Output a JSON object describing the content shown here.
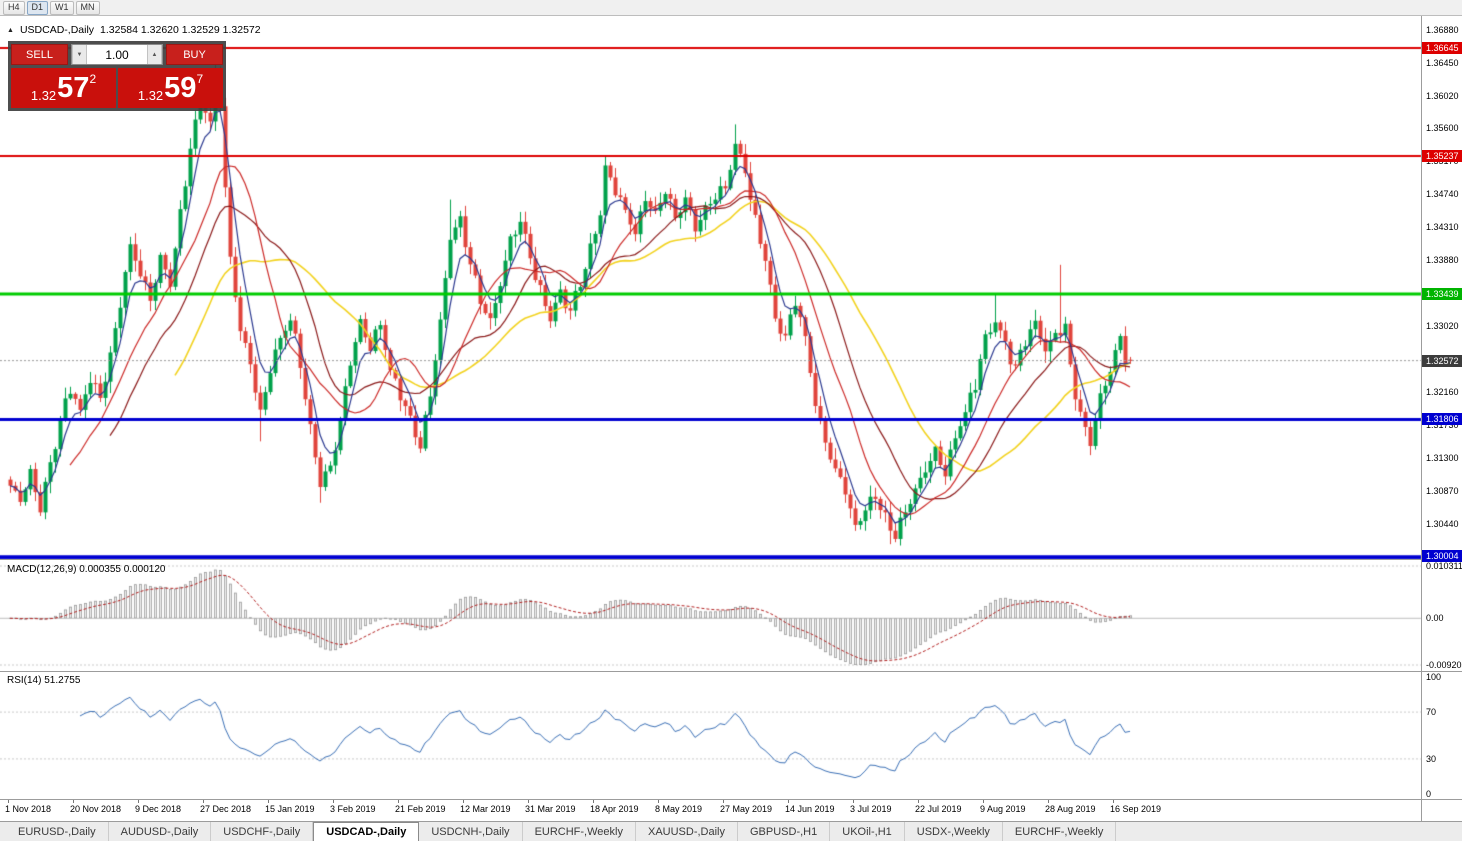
{
  "toolbar": {
    "buttons": [
      {
        "label": "H4",
        "active": false
      },
      {
        "label": "D1",
        "active": true
      },
      {
        "label": "W1",
        "active": false
      },
      {
        "label": "MN",
        "active": false
      }
    ]
  },
  "chart_header": {
    "collapse_icon": "▲",
    "symbol": "USDCAD-,Daily",
    "ohlc_text": "1.32584 1.32620 1.32529 1.32572"
  },
  "trade_panel": {
    "sell_label": "SELL",
    "buy_label": "BUY",
    "volume": "1.00",
    "volume_down_icon": "▼",
    "volume_up_icon": "▲",
    "sell_price": {
      "prefix": "1.32",
      "big": "57",
      "sup": "2"
    },
    "buy_price": {
      "prefix": "1.32",
      "big": "59",
      "sup": "7"
    }
  },
  "price_axis": {
    "ticks": [
      "1.36880",
      "1.36450",
      "1.36020",
      "1.35600",
      "1.35170",
      "1.34740",
      "1.34310",
      "1.33880",
      "1.33450",
      "1.33020",
      "1.32590",
      "1.32160",
      "1.31730",
      "1.31300",
      "1.30870",
      "1.30440"
    ],
    "badges": [
      {
        "value": "1.36645",
        "bg": "#dd0000"
      },
      {
        "value": "1.35237",
        "bg": "#dd0000"
      },
      {
        "value": "1.33439",
        "bg": "#00b400"
      },
      {
        "value": "1.32572",
        "bg": "#3c3c3c"
      },
      {
        "value": "1.31806",
        "bg": "#0000d0"
      },
      {
        "value": "1.30004",
        "bg": "#0000d0"
      }
    ]
  },
  "macd_panel": {
    "label": "MACD(12,26,9) 0.000355 0.000120",
    "axis_labels": [
      {
        "text": "0.010311",
        "value": 0.010311
      },
      {
        "text": "0.00",
        "value": 0
      },
      {
        "text": "-0.009203",
        "value": -0.009203
      }
    ]
  },
  "rsi_panel": {
    "label": "RSI(14) 51.2755",
    "axis_labels": [
      {
        "text": "100",
        "value": 100
      },
      {
        "text": "70",
        "value": 70
      },
      {
        "text": "30",
        "value": 30
      },
      {
        "text": "0",
        "value": 0
      }
    ]
  },
  "time_axis": {
    "labels": [
      "1 Nov 2018",
      "20 Nov 2018",
      "9 Dec 2018",
      "27 Dec 2018",
      "15 Jan 2019",
      "3 Feb 2019",
      "21 Feb 2019",
      "12 Mar 2019",
      "31 Mar 2019",
      "18 Apr 2019",
      "8 May 2019",
      "27 May 2019",
      "14 Jun 2019",
      "3 Jul 2019",
      "22 Jul 2019",
      "9 Aug 2019",
      "28 Aug 2019",
      "16 Sep 2019"
    ]
  },
  "tab_bar": {
    "tabs": [
      {
        "label": "EURUSD-,Daily",
        "active": false
      },
      {
        "label": "AUDUSD-,Daily",
        "active": false
      },
      {
        "label": "USDCHF-,Daily",
        "active": false
      },
      {
        "label": "USDCAD-,Daily",
        "active": true
      },
      {
        "label": "USDCNH-,Daily",
        "active": false
      },
      {
        "label": "EURCHF-,Weekly",
        "active": false
      },
      {
        "label": "XAUUSD-,Daily",
        "active": false
      },
      {
        "label": "GBPUSD-,H1",
        "active": false
      },
      {
        "label": "UKOil-,H1",
        "active": false
      },
      {
        "label": "USDX-,Weekly",
        "active": false
      },
      {
        "label": "EURCHF-,Weekly",
        "active": false
      }
    ]
  },
  "colors": {
    "up_candle": "#00a14b",
    "down_candle": "#e0443c",
    "ma_fast_navy": "#2b3990",
    "ma_mid_red": "#cc2a28",
    "ma_mid_darkred": "#8b1a1a",
    "ma_slow_yellow": "#f2d21f",
    "level_red": "#dd0000",
    "level_green": "#00cc00",
    "level_blue": "#0000d0",
    "macd_hist_fill": "#f0f0f0",
    "macd_hist_border": "#9b9b9b",
    "macd_signal": "#b22222",
    "rsi_line": "#3a6fb5",
    "grid_dash": "#c8c8c8",
    "current_price_line": "#999999"
  },
  "chart_data": {
    "type": "candlestick",
    "symbol": "USDCAD",
    "timeframe": "Daily",
    "title": "USDCAD-,Daily",
    "current": {
      "open": 1.32584,
      "high": 1.3262,
      "low": 1.32529,
      "close": 1.32572,
      "bid": 1.32572,
      "ask": 1.32597
    },
    "y_axis": {
      "top_tick": 1.3688,
      "bottom_tick": 1.3044,
      "tick_step": 0.0043
    },
    "x_labels": [
      "1 Nov 2018",
      "20 Nov 2018",
      "9 Dec 2018",
      "27 Dec 2018",
      "15 Jan 2019",
      "3 Feb 2019",
      "21 Feb 2019",
      "12 Mar 2019",
      "31 Mar 2019",
      "18 Apr 2019",
      "8 May 2019",
      "27 May 2019",
      "14 Jun 2019",
      "3 Jul 2019",
      "22 Jul 2019",
      "9 Aug 2019",
      "28 Aug 2019",
      "16 Sep 2019"
    ],
    "levels": [
      {
        "price": 1.36645,
        "color": "#dd0000",
        "width": 2
      },
      {
        "price": 1.35237,
        "color": "#dd0000",
        "width": 2
      },
      {
        "price": 1.33439,
        "color": "#00cc00",
        "width": 3
      },
      {
        "price": 1.31806,
        "color": "#0000d0",
        "width": 3
      },
      {
        "price": 1.30004,
        "color": "#0000d0",
        "width": 5
      }
    ],
    "current_price_level": 1.32572,
    "num_candles": 225,
    "candles_per_label": 13,
    "close_path_anchors": [
      [
        0,
        1.3095
      ],
      [
        2,
        1.3072
      ],
      [
        4,
        1.311
      ],
      [
        6,
        1.3068
      ],
      [
        9,
        1.315
      ],
      [
        12,
        1.3218
      ],
      [
        14,
        1.3188
      ],
      [
        16,
        1.324
      ],
      [
        18,
        1.3212
      ],
      [
        20,
        1.3262
      ],
      [
        22,
        1.333
      ],
      [
        24,
        1.3402
      ],
      [
        26,
        1.3372
      ],
      [
        28,
        1.334
      ],
      [
        30,
        1.3392
      ],
      [
        32,
        1.336
      ],
      [
        34,
        1.3442
      ],
      [
        36,
        1.353
      ],
      [
        38,
        1.3598
      ],
      [
        40,
        1.3572
      ],
      [
        41,
        1.363
      ],
      [
        42,
        1.3598
      ],
      [
        43,
        1.3482
      ],
      [
        44,
        1.339
      ],
      [
        46,
        1.3295
      ],
      [
        48,
        1.3252
      ],
      [
        50,
        1.3185
      ],
      [
        52,
        1.3252
      ],
      [
        54,
        1.3288
      ],
      [
        56,
        1.3312
      ],
      [
        58,
        1.3248
      ],
      [
        60,
        1.3162
      ],
      [
        62,
        1.3098
      ],
      [
        64,
        1.3125
      ],
      [
        66,
        1.3182
      ],
      [
        68,
        1.3258
      ],
      [
        70,
        1.3305
      ],
      [
        72,
        1.3272
      ],
      [
        74,
        1.3308
      ],
      [
        76,
        1.3248
      ],
      [
        78,
        1.3218
      ],
      [
        80,
        1.3178
      ],
      [
        82,
        1.3138
      ],
      [
        84,
        1.3208
      ],
      [
        86,
        1.3308
      ],
      [
        88,
        1.3422
      ],
      [
        90,
        1.3445
      ],
      [
        92,
        1.3382
      ],
      [
        94,
        1.3332
      ],
      [
        96,
        1.3308
      ],
      [
        98,
        1.3362
      ],
      [
        100,
        1.342
      ],
      [
        102,
        1.3438
      ],
      [
        104,
        1.3388
      ],
      [
        106,
        1.3342
      ],
      [
        108,
        1.3312
      ],
      [
        110,
        1.3348
      ],
      [
        112,
        1.3322
      ],
      [
        114,
        1.3362
      ],
      [
        116,
        1.3398
      ],
      [
        118,
        1.3448
      ],
      [
        119,
        1.3502
      ],
      [
        121,
        1.3478
      ],
      [
        123,
        1.3455
      ],
      [
        125,
        1.3428
      ],
      [
        127,
        1.3465
      ],
      [
        129,
        1.3442
      ],
      [
        131,
        1.3475
      ],
      [
        133,
        1.3442
      ],
      [
        135,
        1.3468
      ],
      [
        137,
        1.3432
      ],
      [
        139,
        1.3452
      ],
      [
        141,
        1.3465
      ],
      [
        143,
        1.3478
      ],
      [
        145,
        1.354
      ],
      [
        147,
        1.3508
      ],
      [
        149,
        1.3442
      ],
      [
        151,
        1.3388
      ],
      [
        153,
        1.3312
      ],
      [
        155,
        1.3282
      ],
      [
        157,
        1.3338
      ],
      [
        159,
        1.3288
      ],
      [
        161,
        1.3202
      ],
      [
        163,
        1.3152
      ],
      [
        165,
        1.3112
      ],
      [
        167,
        1.3088
      ],
      [
        169,
        1.3042
      ],
      [
        171,
        1.3068
      ],
      [
        173,
        1.3082
      ],
      [
        175,
        1.3048
      ],
      [
        177,
        1.3025
      ],
      [
        179,
        1.3058
      ],
      [
        181,
        1.3092
      ],
      [
        183,
        1.3118
      ],
      [
        185,
        1.3138
      ],
      [
        187,
        1.3108
      ],
      [
        189,
        1.3152
      ],
      [
        191,
        1.3188
      ],
      [
        193,
        1.3228
      ],
      [
        195,
        1.3292
      ],
      [
        197,
        1.3312
      ],
      [
        199,
        1.3275
      ],
      [
        201,
        1.3242
      ],
      [
        203,
        1.3282
      ],
      [
        205,
        1.3308
      ],
      [
        207,
        1.3272
      ],
      [
        209,
        1.3295
      ],
      [
        211,
        1.3302
      ],
      [
        212,
        1.3242
      ],
      [
        214,
        1.3182
      ],
      [
        216,
        1.3152
      ],
      [
        218,
        1.3212
      ],
      [
        220,
        1.3252
      ],
      [
        222,
        1.3288
      ],
      [
        223,
        1.3258
      ],
      [
        224,
        1.32572
      ]
    ],
    "wick_extremes": [
      [
        41,
        "h",
        1.3648
      ],
      [
        50,
        "l",
        1.3152
      ],
      [
        62,
        "l",
        1.3072
      ],
      [
        88,
        "h",
        1.3467
      ],
      [
        119,
        "h",
        1.3521
      ],
      [
        145,
        "h",
        1.3565
      ],
      [
        176,
        "l",
        1.3018
      ],
      [
        197,
        "h",
        1.3345
      ],
      [
        210,
        "h",
        1.3382
      ],
      [
        216,
        "l",
        1.3134
      ]
    ],
    "moving_averages": [
      {
        "type": "sma",
        "period": 34,
        "color": "#f2d21f"
      },
      {
        "type": "sma",
        "period": 21,
        "color": "#8b1a1a"
      },
      {
        "type": "sma",
        "period": 13,
        "color": "#cc2a28"
      },
      {
        "type": "ema",
        "period": 5,
        "color": "#2b3990"
      }
    ],
    "macd": {
      "fast": 12,
      "slow": 26,
      "signal_period": 9,
      "current_macd": 0.000355,
      "current_signal": 0.00012,
      "scale_max": 0.010311,
      "scale_min": -0.009203
    },
    "rsi": {
      "period": 14,
      "current": 51.2755,
      "upper_level": 70,
      "lower_level": 30,
      "scale": [
        0,
        100
      ]
    }
  }
}
